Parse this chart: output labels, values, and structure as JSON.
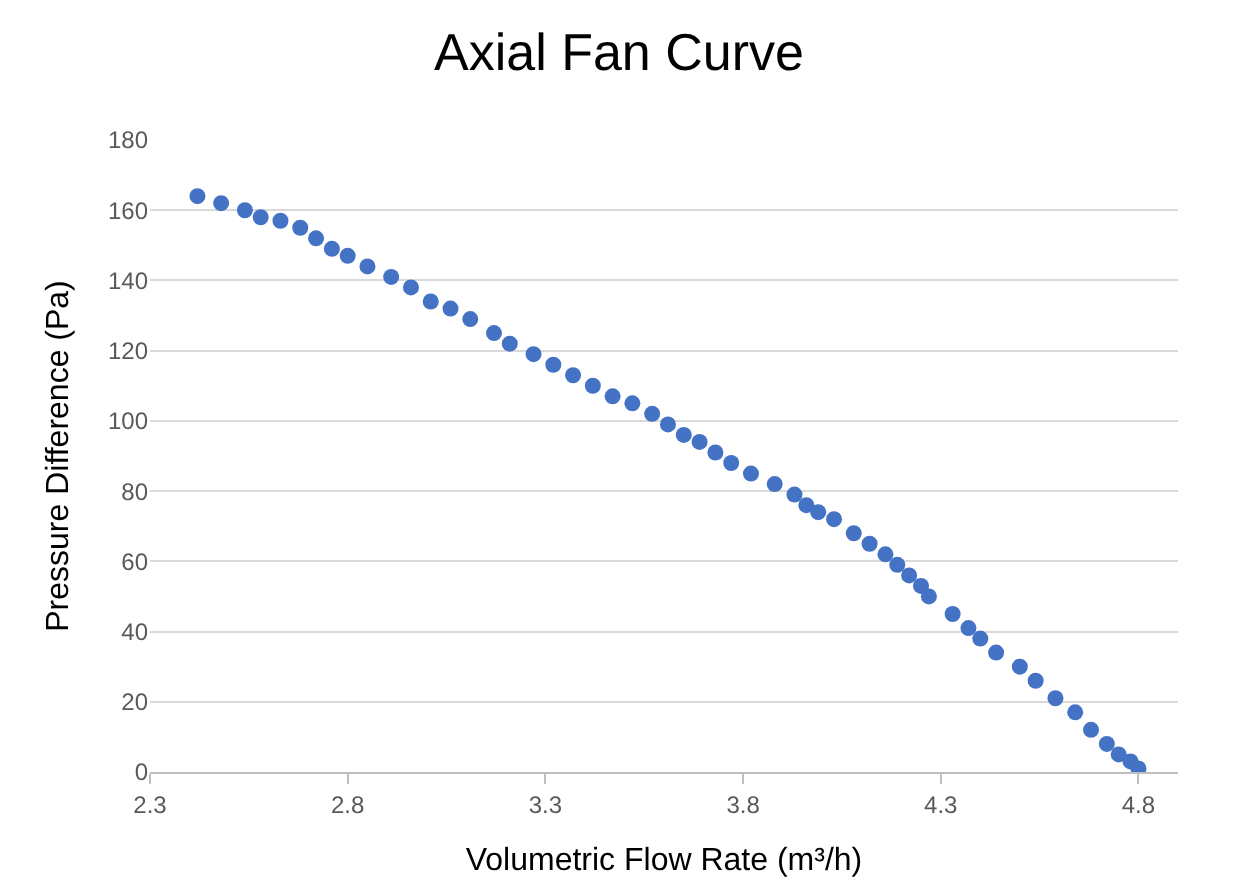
{
  "chart_data": {
    "type": "scatter",
    "title": "Axial Fan Curve",
    "xlabel": "Volumetric Flow Rate (m³/h)",
    "ylabel": "Pressure Difference (Pa)",
    "series": [
      {
        "color": "#4472c4",
        "x": [
          2.42,
          2.48,
          2.54,
          2.58,
          2.63,
          2.68,
          2.72,
          2.76,
          2.8,
          2.85,
          2.91,
          2.96,
          3.01,
          3.06,
          3.11,
          3.17,
          3.21,
          3.27,
          3.32,
          3.37,
          3.42,
          3.47,
          3.52,
          3.57,
          3.61,
          3.65,
          3.69,
          3.73,
          3.77,
          3.82,
          3.88,
          3.93,
          3.96,
          3.99,
          4.03,
          4.08,
          4.12,
          4.16,
          4.19,
          4.22,
          4.25,
          4.27,
          4.33,
          4.37,
          4.4,
          4.44,
          4.5,
          4.54,
          4.59,
          4.64,
          4.68,
          4.72,
          4.75,
          4.78,
          4.8
        ],
        "values": [
          164,
          162,
          160,
          158,
          157,
          155,
          152,
          149,
          147,
          144,
          141,
          138,
          134,
          132,
          129,
          125,
          122,
          119,
          116,
          113,
          110,
          107,
          105,
          102,
          99,
          96,
          94,
          91,
          88,
          85,
          82,
          79,
          76,
          74,
          72,
          68,
          65,
          62,
          59,
          56,
          53,
          50,
          45,
          41,
          38,
          34,
          30,
          26,
          21,
          17,
          12,
          8,
          5,
          3,
          1
        ]
      }
    ],
    "xlim": [
      2.3,
      4.9
    ],
    "xticks": [
      2.3,
      2.8,
      3.3,
      3.8,
      4.3,
      4.8
    ],
    "ylim": [
      0,
      180
    ],
    "yticks": [
      0,
      20,
      40,
      60,
      80,
      100,
      120,
      140,
      160,
      180
    ],
    "grid": "y",
    "marker": "circle"
  }
}
